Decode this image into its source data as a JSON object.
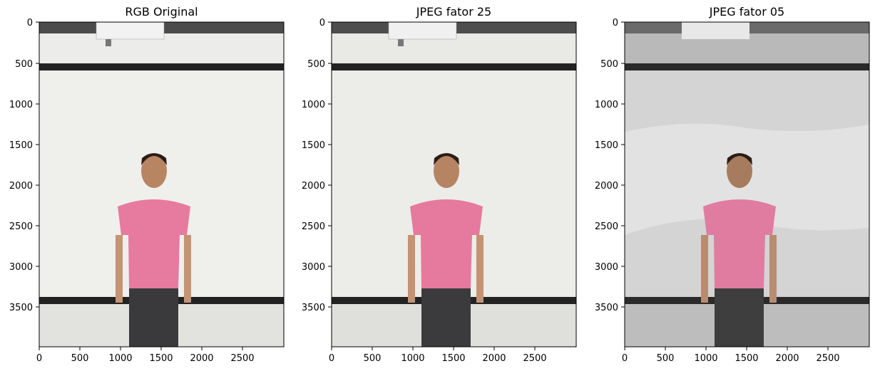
{
  "panels": [
    {
      "title": "RGB Original",
      "variant": "original"
    },
    {
      "title": "JPEG fator 25",
      "variant": "q25"
    },
    {
      "title": "JPEG fator 05",
      "variant": "q05"
    }
  ],
  "axes": {
    "y_ticks": [
      "0",
      "500",
      "1000",
      "1500",
      "2000",
      "2500",
      "3000",
      "3500"
    ],
    "x_ticks": [
      "0",
      "500",
      "1000",
      "1500",
      "2000",
      "2500"
    ]
  },
  "colors": {
    "wall": "#ececea",
    "shirt": "#e77a9f",
    "pants": "#3a3a3c",
    "rail": "#222222",
    "ceiling": "#4b4b4b"
  }
}
